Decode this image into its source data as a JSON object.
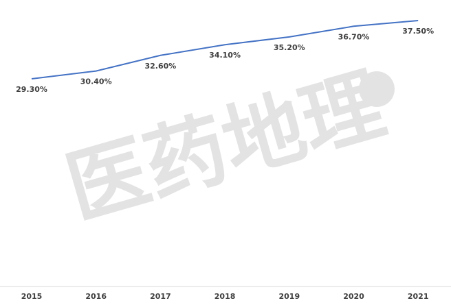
{
  "chart_data": {
    "type": "line",
    "watermark": "医药地理",
    "categories": [
      "2015",
      "2016",
      "2017",
      "2018",
      "2019",
      "2020",
      "2021"
    ],
    "series": [
      {
        "color": "#4472c4",
        "values": [
          29.3,
          30.4,
          32.6,
          34.1,
          35.2,
          36.7,
          37.5
        ],
        "value_labels": [
          "29.30%",
          "30.40%",
          "32.60%",
          "34.10%",
          "35.20%",
          "36.70%",
          "37.50%"
        ]
      }
    ]
  }
}
